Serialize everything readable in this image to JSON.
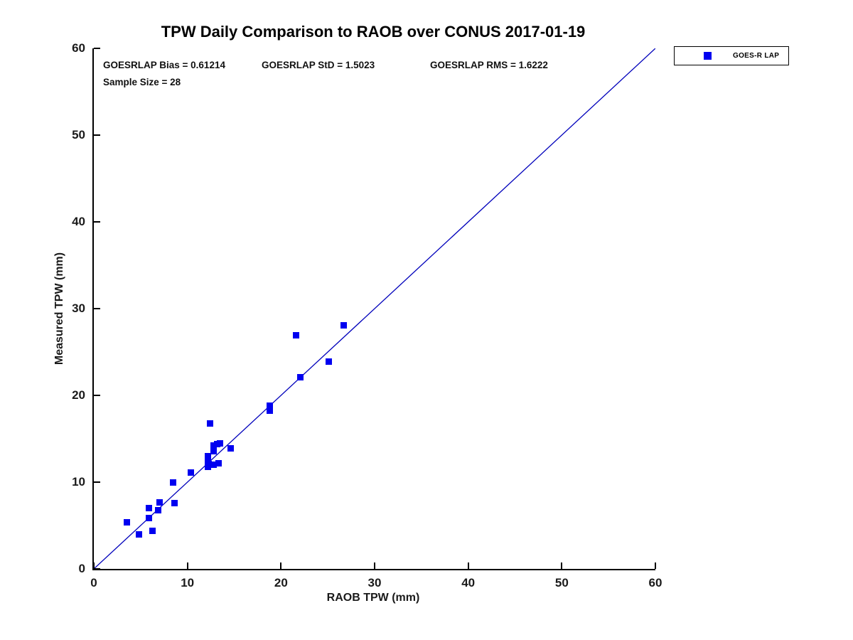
{
  "figure": {
    "title": "TPW Daily Comparison to RAOB over CONUS 2017-01-19",
    "stats": {
      "bias": "GOESRLAP Bias = 0.61214",
      "std": "GOESRLAP StD = 1.5023",
      "rms": "GOESRLAP RMS = 1.6222",
      "sample_size": "Sample Size = 28"
    },
    "colors": {
      "marker": "#0000f0",
      "reference_line": "#0000bb",
      "axis": "#000000",
      "text": "#1a1a1a",
      "background": "#ffffff"
    }
  },
  "chart_data": {
    "type": "scatter",
    "title": "TPW Daily Comparison to RAOB over CONUS 2017-01-19",
    "xlabel": "RAOB TPW (mm)",
    "ylabel": "Measured TPW (mm)",
    "xlim": [
      0,
      60
    ],
    "ylim": [
      0,
      60
    ],
    "x_ticks": [
      0,
      10,
      20,
      30,
      40,
      50,
      60
    ],
    "y_ticks": [
      0,
      10,
      20,
      30,
      40,
      50,
      60
    ],
    "grid": false,
    "legend_position": "top-right-outside",
    "annotations": {
      "bias": 0.61214,
      "std": 1.5023,
      "rms": 1.6222,
      "sample_size": 28
    },
    "reference_line": {
      "x1": 0,
      "y1": 0,
      "x2": 60,
      "y2": 60,
      "style": "solid",
      "color": "#0000bb"
    },
    "series": [
      {
        "name": "GOES-R LAP",
        "marker": "square",
        "color": "#0000f0",
        "points": [
          [
            3.5,
            5.4
          ],
          [
            4.8,
            4.0
          ],
          [
            6.3,
            4.4
          ],
          [
            5.9,
            5.9
          ],
          [
            5.9,
            7.0
          ],
          [
            6.9,
            6.8
          ],
          [
            7.0,
            7.7
          ],
          [
            8.6,
            7.6
          ],
          [
            8.5,
            10.0
          ],
          [
            10.4,
            11.1
          ],
          [
            12.2,
            11.8
          ],
          [
            12.3,
            12.1
          ],
          [
            12.2,
            12.3
          ],
          [
            12.8,
            12.0
          ],
          [
            13.3,
            12.2
          ],
          [
            12.2,
            13.0
          ],
          [
            12.8,
            13.6
          ],
          [
            12.8,
            14.2
          ],
          [
            13.2,
            14.4
          ],
          [
            13.5,
            14.5
          ],
          [
            14.6,
            13.9
          ],
          [
            12.4,
            16.8
          ],
          [
            18.8,
            18.2
          ],
          [
            18.8,
            18.8
          ],
          [
            22.1,
            22.1
          ],
          [
            25.1,
            23.9
          ],
          [
            21.6,
            26.9
          ],
          [
            26.7,
            28.1
          ]
        ]
      }
    ]
  }
}
